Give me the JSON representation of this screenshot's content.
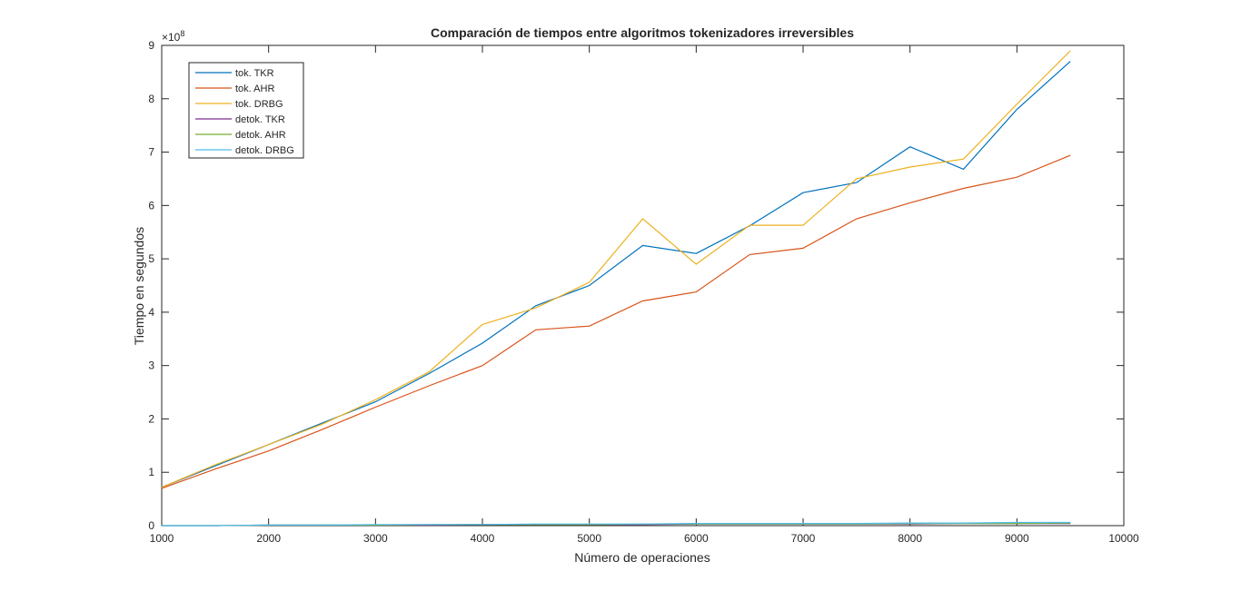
{
  "chart_data": {
    "type": "line",
    "title": "Comparación de tiempos entre algoritmos tokenizadores irreversibles",
    "xlabel": "Número de operaciones",
    "ylabel": "Tiempo en segundos",
    "y_exponent_label": "×10",
    "y_exponent_power": "8",
    "xlim": [
      1000,
      10000
    ],
    "ylim": [
      0,
      9
    ],
    "y_multiplier": 100000000,
    "xticks": [
      1000,
      2000,
      3000,
      4000,
      5000,
      6000,
      7000,
      8000,
      9000,
      10000
    ],
    "yticks": [
      0,
      1,
      2,
      3,
      4,
      5,
      6,
      7,
      8,
      9
    ],
    "grid": false,
    "legend_position": "top-left",
    "x": [
      1000,
      1500,
      2000,
      2500,
      3000,
      3500,
      4000,
      4500,
      5000,
      5500,
      6000,
      6500,
      7000,
      7500,
      8000,
      8500,
      9000,
      9500
    ],
    "series": [
      {
        "name": "tok. TKR",
        "color": "#0072BD",
        "values": [
          0.72,
          1.12,
          1.52,
          1.92,
          2.32,
          2.85,
          3.42,
          4.12,
          4.5,
          5.25,
          5.1,
          5.62,
          6.24,
          6.43,
          7.1,
          6.68,
          7.8,
          8.7
        ]
      },
      {
        "name": "tok. AHR",
        "color": "#D95319",
        "values": [
          0.7,
          1.06,
          1.4,
          1.8,
          2.22,
          2.62,
          3.0,
          3.67,
          3.74,
          4.21,
          4.38,
          5.08,
          5.2,
          5.75,
          6.05,
          6.32,
          6.53,
          6.94
        ]
      },
      {
        "name": "tok. DRBG",
        "color": "#EDB120",
        "values": [
          0.72,
          1.14,
          1.52,
          1.9,
          2.36,
          2.88,
          3.77,
          4.08,
          4.56,
          5.75,
          4.9,
          5.63,
          5.63,
          6.5,
          6.72,
          6.87,
          7.9,
          8.9
        ]
      },
      {
        "name": "detok. TKR",
        "color": "#7E2F8E",
        "values": [
          0.0,
          0.0,
          0.01,
          0.01,
          0.01,
          0.01,
          0.02,
          0.02,
          0.02,
          0.02,
          0.03,
          0.03,
          0.03,
          0.03,
          0.03,
          0.04,
          0.04,
          0.04
        ]
      },
      {
        "name": "detok. AHR",
        "color": "#77AC30",
        "values": [
          0.0,
          0.0,
          0.01,
          0.01,
          0.01,
          0.02,
          0.02,
          0.02,
          0.02,
          0.03,
          0.03,
          0.03,
          0.03,
          0.03,
          0.04,
          0.04,
          0.04,
          0.05
        ]
      },
      {
        "name": "detok. DRBG",
        "color": "#4DBEEE",
        "values": [
          0.0,
          0.0,
          0.01,
          0.01,
          0.02,
          0.02,
          0.02,
          0.03,
          0.03,
          0.03,
          0.04,
          0.04,
          0.04,
          0.04,
          0.05,
          0.05,
          0.06,
          0.06
        ]
      }
    ]
  }
}
